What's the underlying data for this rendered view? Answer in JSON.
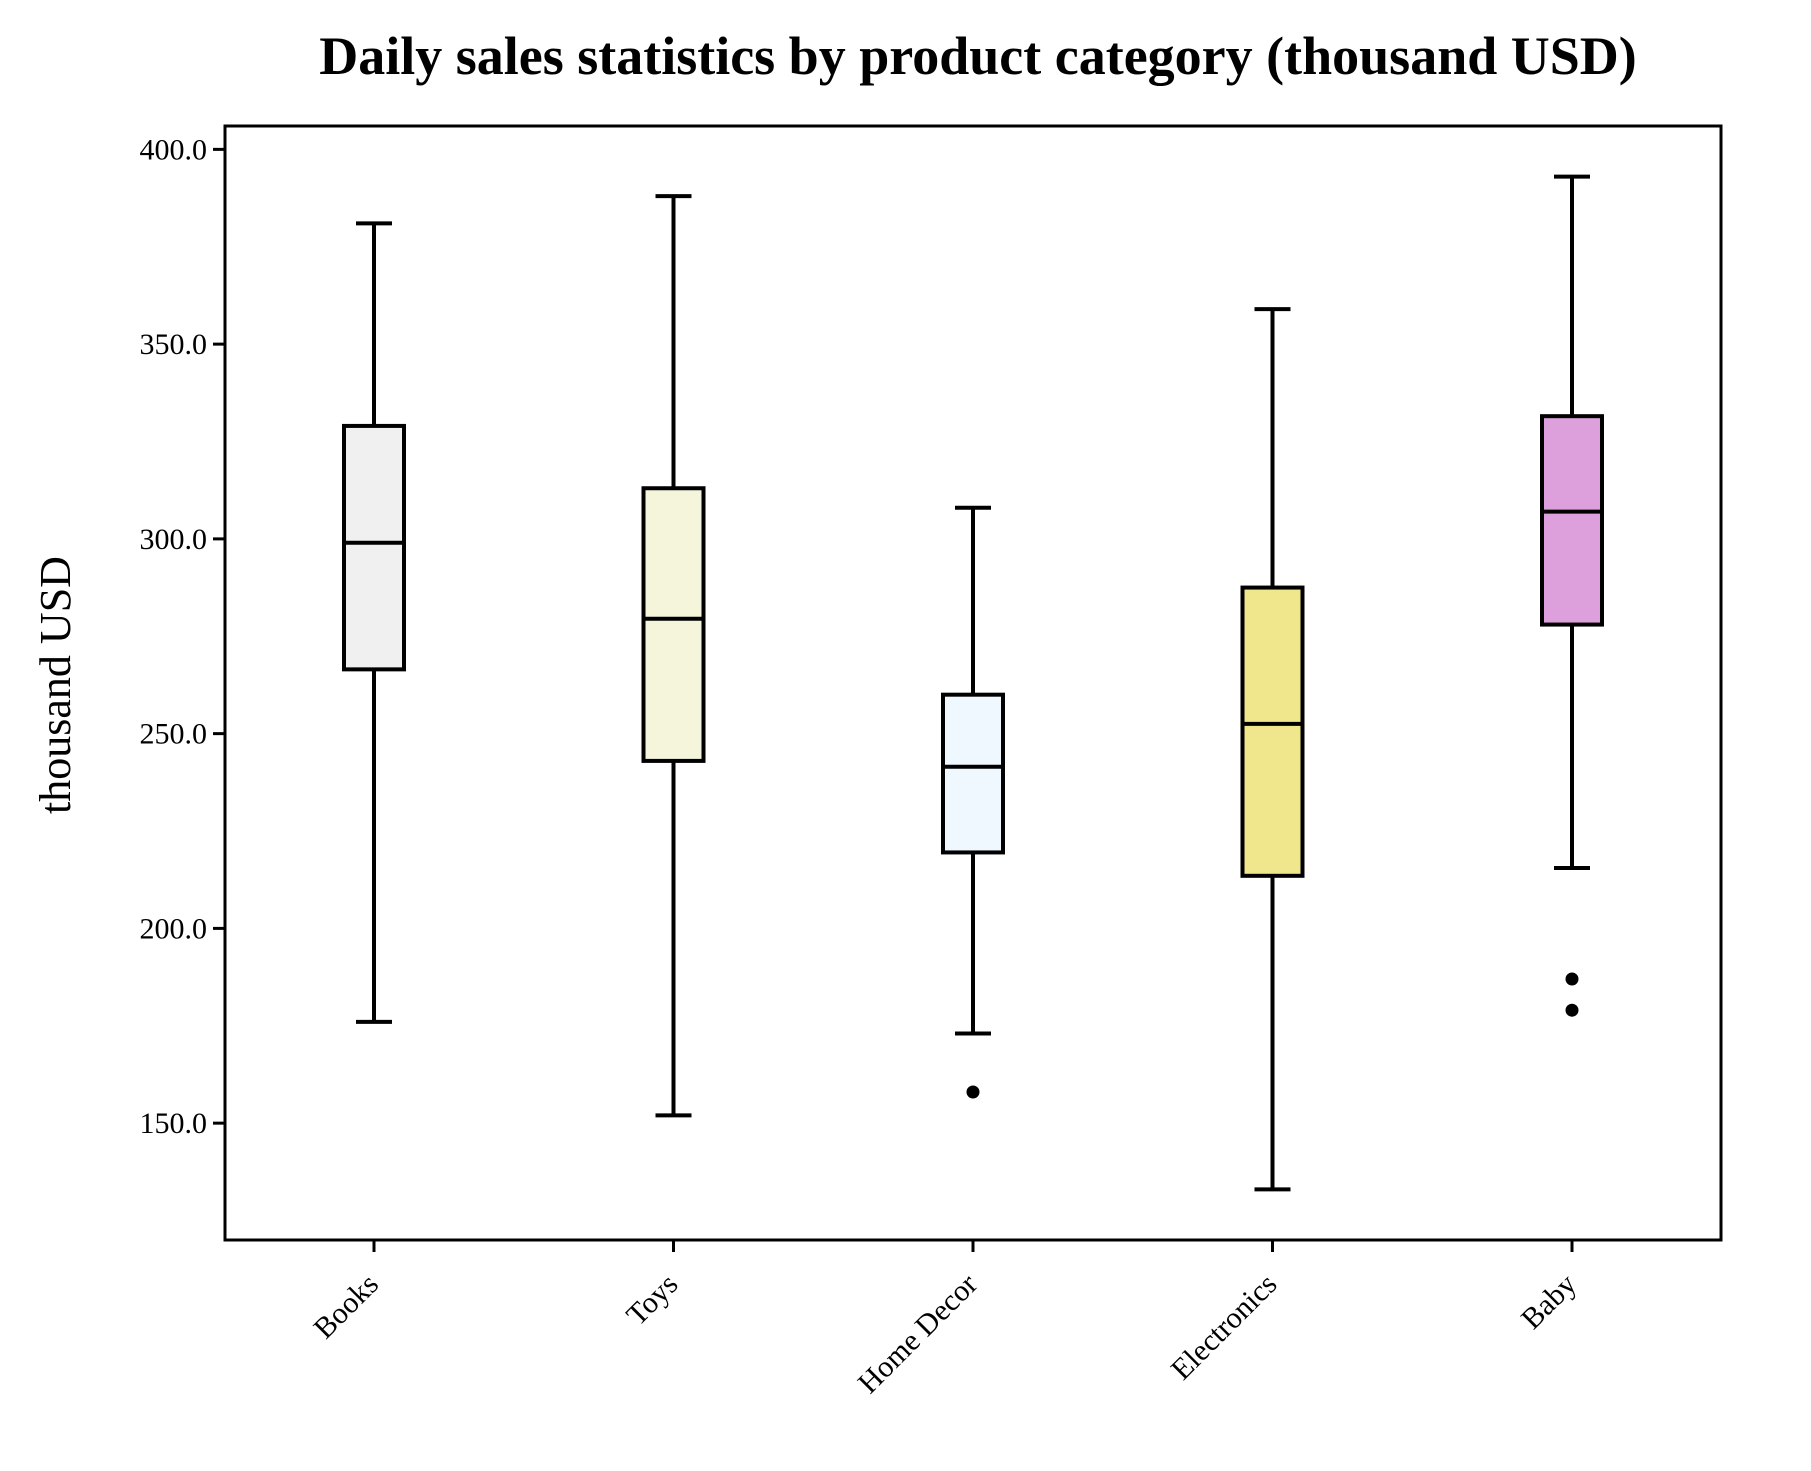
{
  "chart_data": {
    "type": "box",
    "title": "Daily sales statistics by product category (thousand USD)",
    "xlabel": "",
    "ylabel": "thousand USD",
    "ylim": [
      120,
      406
    ],
    "yticks": [
      150,
      200,
      250,
      300,
      350,
      400
    ],
    "ytick_labels": [
      "150.0",
      "200.0",
      "250.0",
      "300.0",
      "350.0",
      "400.0"
    ],
    "grid": false,
    "legend": "none",
    "categories": [
      "Books",
      "Toys",
      "Home Decor",
      "Electronics",
      "Baby"
    ],
    "boxes": [
      {
        "category": "Books",
        "whisker_low": 176,
        "q1": 266.5,
        "median": 299,
        "q3": 329,
        "whisker_high": 381,
        "outliers": [],
        "color": "#f0f0f0"
      },
      {
        "category": "Toys",
        "whisker_low": 152,
        "q1": 243,
        "median": 279.5,
        "q3": 313,
        "whisker_high": 388,
        "outliers": [],
        "color": "#f5f5dc"
      },
      {
        "category": "Home Decor",
        "whisker_low": 173,
        "q1": 219.5,
        "median": 241.5,
        "q3": 260,
        "whisker_high": 308,
        "outliers": [
          158
        ],
        "color": "#f0f8ff"
      },
      {
        "category": "Electronics",
        "whisker_low": 133,
        "q1": 213.5,
        "median": 252.5,
        "q3": 287.5,
        "whisker_high": 359,
        "outliers": [],
        "color": "#f0e68c"
      },
      {
        "category": "Baby",
        "whisker_low": 215.5,
        "q1": 278,
        "median": 307,
        "q3": 331.5,
        "whisker_high": 393,
        "outliers": [
          187,
          179
        ],
        "color": "#dda0dd"
      }
    ]
  }
}
